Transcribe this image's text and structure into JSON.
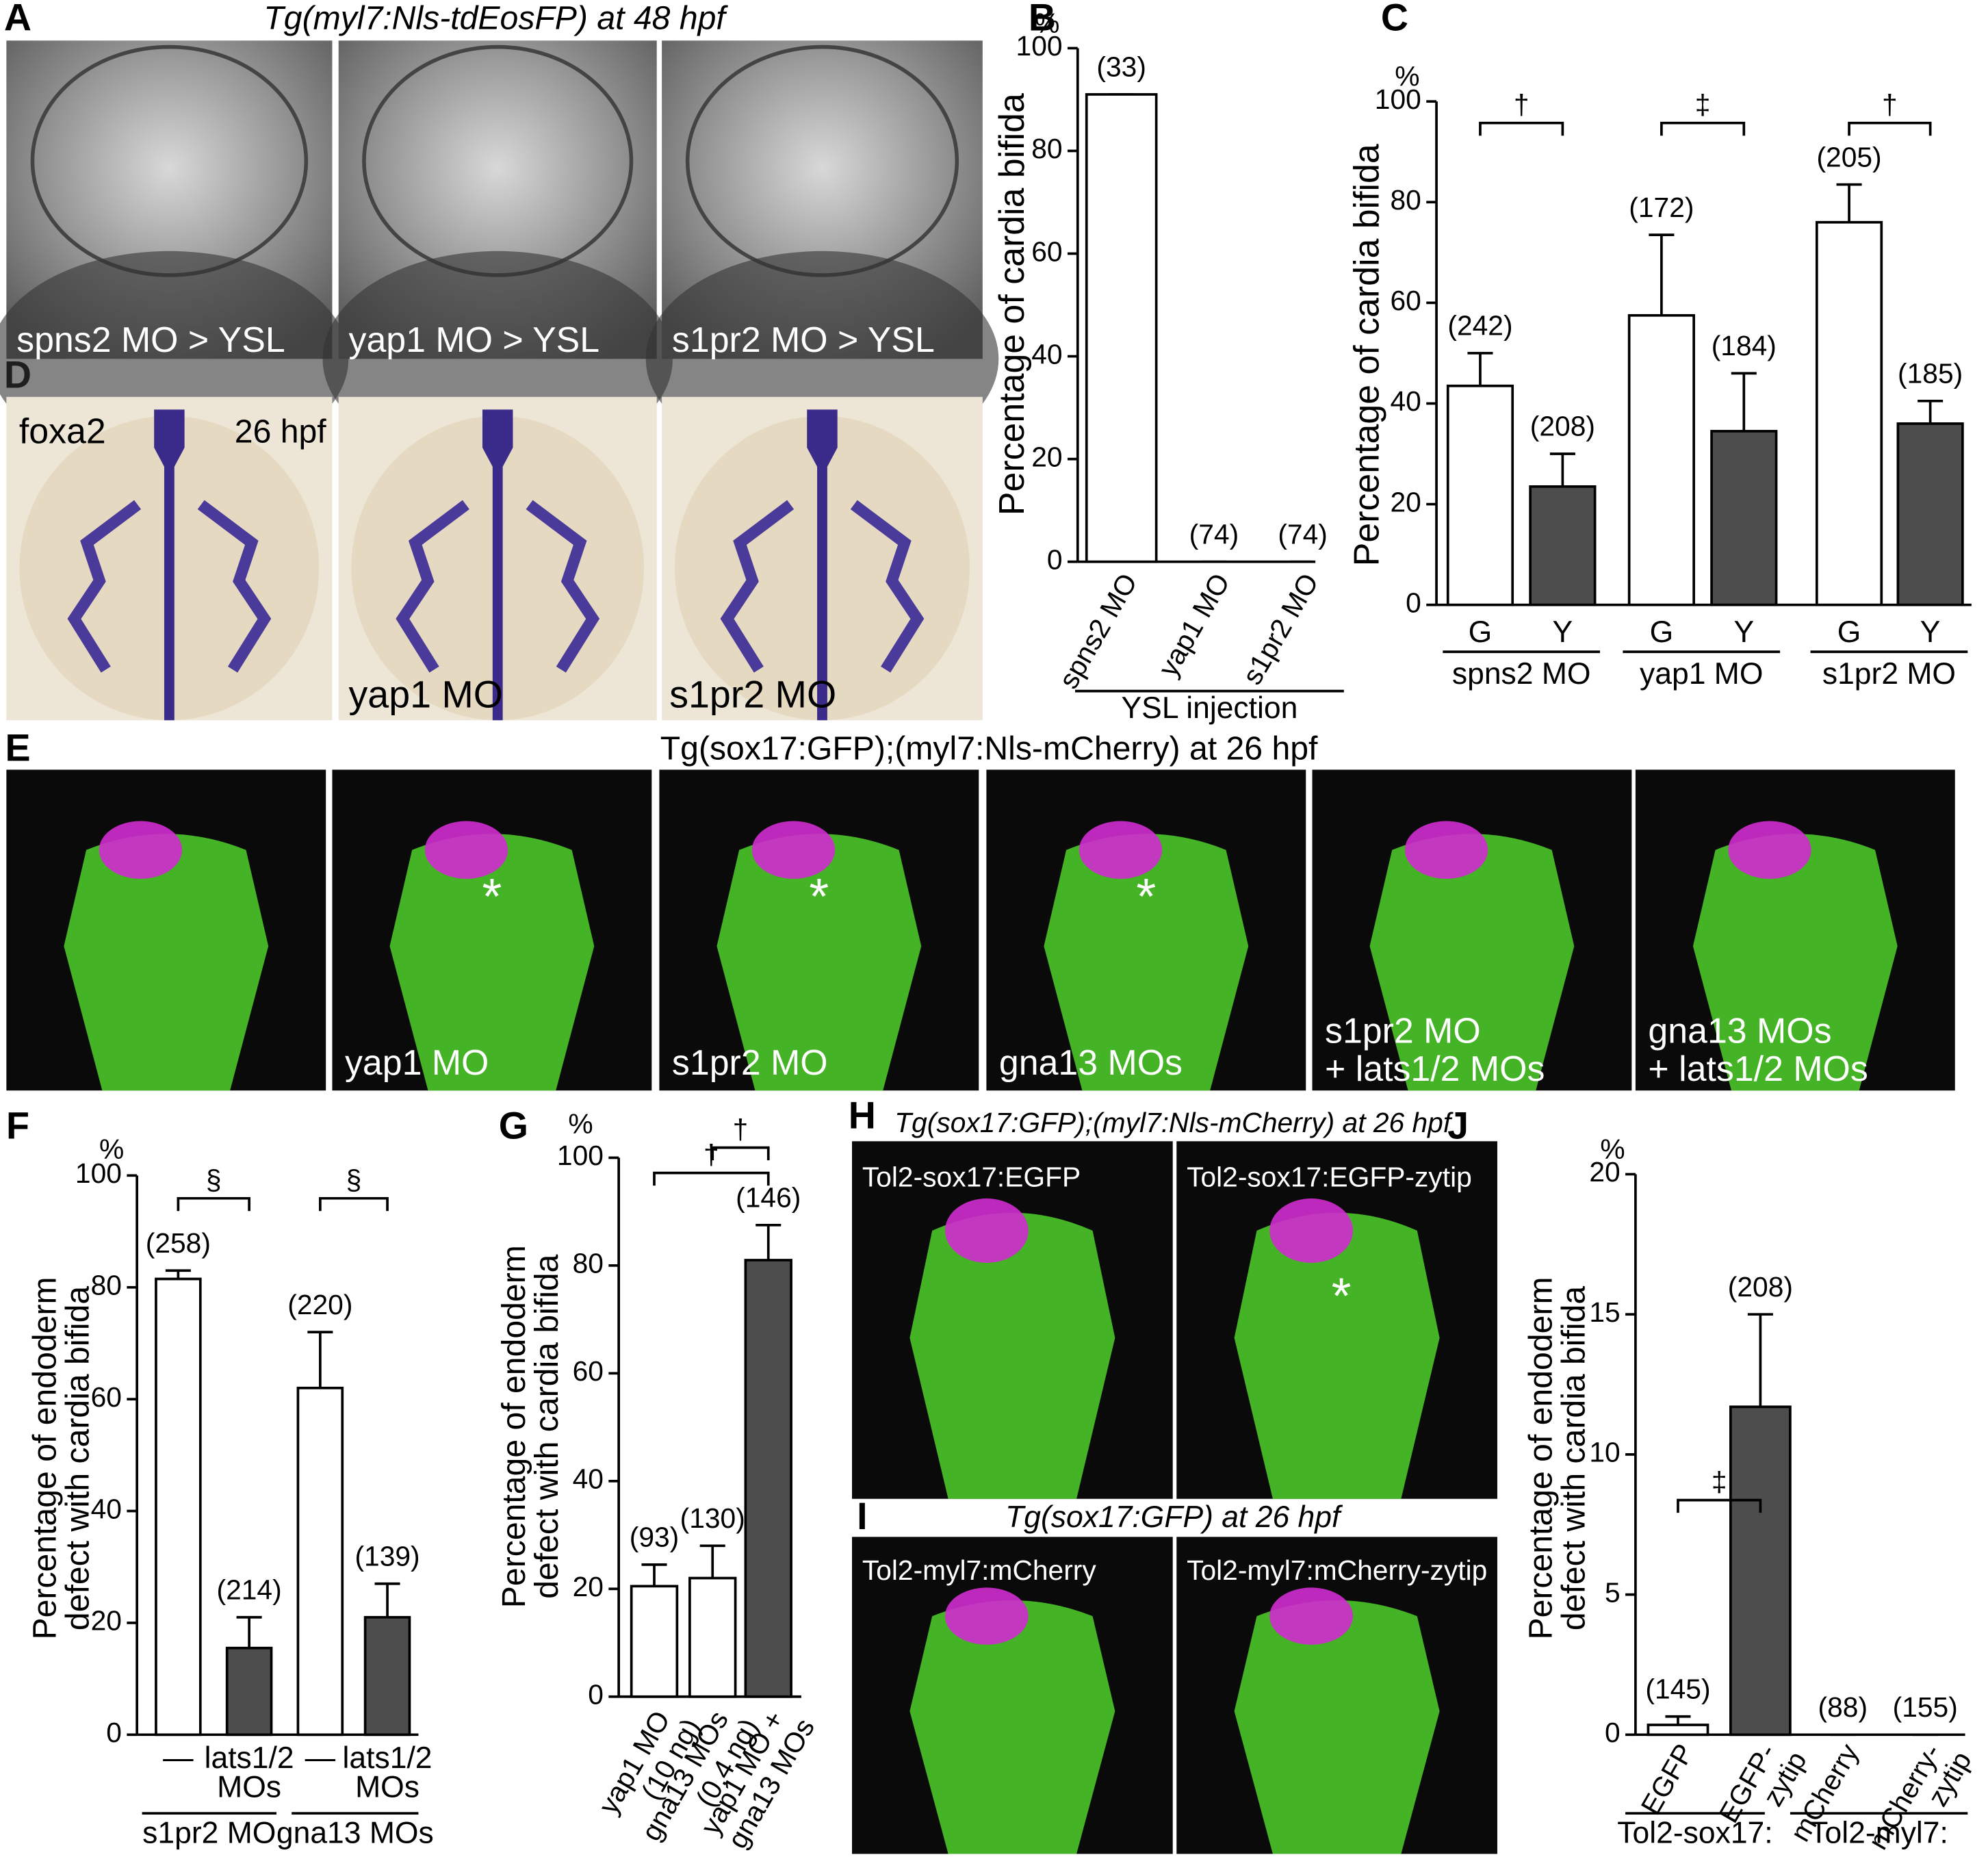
{
  "letters": [
    "A",
    "B",
    "C",
    "D",
    "E",
    "F",
    "G",
    "H",
    "I",
    "J"
  ],
  "asterisk": "*",
  "panel_A": {
    "title": "Tg(myl7:Nls-tdEosFP) at 48 hpf",
    "labels": [
      "spns2 MO > YSL",
      "yap1 MO > YSL",
      "s1pr2 MO > YSL"
    ]
  },
  "panel_D": {
    "labels": [
      "foxa2",
      "yap1 MO",
      "s1pr2 MO"
    ],
    "stage": "26 hpf"
  },
  "panel_E": {
    "title": "Tg(sox17:GFP);(myl7:Nls-mCherry) at 26 hpf",
    "labels": [
      [],
      [
        "yap1 MO"
      ],
      [
        "s1pr2 MO"
      ],
      [
        "gna13 MOs"
      ],
      [
        "s1pr2 MO",
        "+ lats1/2 MOs"
      ],
      [
        "gna13 MOs",
        "+ lats1/2 MOs"
      ]
    ]
  },
  "panel_H": {
    "title": "Tg(sox17:GFP);(myl7:Nls-mCherry) at 26 hpf",
    "labels": [
      "Tol2-sox17:EGFP",
      "Tol2-sox17:EGFP-zytip"
    ]
  },
  "panel_I": {
    "title": "Tg(sox17:GFP) at 26 hpf",
    "labels": [
      "Tol2-myl7:mCherry",
      "Tol2-myl7:mCherry-zytip"
    ]
  },
  "chart_data": [
    {
      "type": "bar",
      "ylabel": "Percentage of cardia bifida",
      "unit": "%",
      "categories": [
        "spns2 MO",
        "yap1 MO",
        "s1pr2 MO"
      ],
      "values": [
        91,
        0,
        0
      ],
      "errors": [
        0,
        0,
        0
      ],
      "colors": [
        "#ffffff",
        "#ffffff",
        "#ffffff"
      ],
      "n_labels": [
        "(33)",
        "(74)",
        "(74)"
      ],
      "groups": [
        "YSL injection"
      ],
      "ylim": [
        0,
        100
      ],
      "yticks": [
        0,
        20,
        40,
        60,
        80,
        100
      ]
    },
    {
      "type": "bar",
      "ylabel": "Percentage of cardia bifida",
      "unit": "%",
      "categories": [
        "G",
        "Y",
        "G",
        "Y",
        "G",
        "Y"
      ],
      "values": [
        43.5,
        23.5,
        57.5,
        34.5,
        76,
        36
      ],
      "errors": [
        6.5,
        6.5,
        16,
        11.5,
        7.5,
        4.5
      ],
      "colors": [
        "#ffffff",
        "#4d4d4d",
        "#ffffff",
        "#4d4d4d",
        "#ffffff",
        "#4d4d4d"
      ],
      "n_labels": [
        "(242)",
        "(208)",
        "(172)",
        "(184)",
        "(205)",
        "(185)"
      ],
      "groups": [
        "spns2 MO",
        "yap1 MO",
        "s1pr2 MO"
      ],
      "significance": [
        "†",
        "‡",
        "†"
      ],
      "ylim": [
        0,
        100
      ],
      "yticks": [
        0,
        20,
        40,
        60,
        80,
        100
      ]
    },
    {
      "type": "bar",
      "ylabel": [
        "Percentage of endoderm",
        "defect with cardia bifida"
      ],
      "unit": "%",
      "categories": [
        [
          "—"
        ],
        [
          "lats1/2",
          "MOs"
        ],
        [
          "—"
        ],
        [
          "lats1/2",
          "MOs"
        ]
      ],
      "values": [
        81.5,
        15.5,
        62,
        21
      ],
      "errors": [
        1.5,
        5.5,
        10,
        6
      ],
      "colors": [
        "#ffffff",
        "#4d4d4d",
        "#ffffff",
        "#4d4d4d"
      ],
      "n_labels": [
        "(258)",
        "(214)",
        "(220)",
        "(139)"
      ],
      "groups": [
        "s1pr2 MO",
        "gna13 MOs"
      ],
      "significance": [
        "§",
        "§"
      ],
      "ylim": [
        0,
        100
      ],
      "yticks": [
        0,
        20,
        40,
        60,
        80,
        100
      ]
    },
    {
      "type": "bar",
      "ylabel": [
        "Percentage of endoderm",
        "defect with cardia bifida"
      ],
      "unit": "%",
      "categories": [
        [
          "yap1 MO",
          "(10 ng)"
        ],
        [
          "gna13 MOs",
          "(0.4 ng)"
        ],
        [
          "yap1 MO +",
          "gna13 MOs"
        ]
      ],
      "values": [
        20.5,
        22,
        81
      ],
      "errors": [
        4,
        6,
        6.5
      ],
      "colors": [
        "#ffffff",
        "#ffffff",
        "#4d4d4d"
      ],
      "n_labels": [
        "(93)",
        "(130)",
        "(146)"
      ],
      "groups": [],
      "significance": [
        "†",
        "†"
      ],
      "ylim": [
        0,
        100
      ],
      "yticks": [
        0,
        20,
        40,
        60,
        80,
        100
      ]
    },
    {
      "type": "bar",
      "ylabel": [
        "Percentage of endoderm",
        "defect with cardia bifida"
      ],
      "unit": "%",
      "categories": [
        [
          "EGFP"
        ],
        [
          "EGFP-",
          "zytip"
        ],
        [
          "mCherry"
        ],
        [
          "mCherry-",
          "zytip"
        ]
      ],
      "values": [
        0.35,
        11.7,
        0,
        0
      ],
      "errors": [
        0.3,
        3.3,
        0,
        0
      ],
      "colors": [
        "#ffffff",
        "#4d4d4d",
        "#ffffff",
        "#4d4d4d"
      ],
      "n_labels": [
        "(145)",
        "(208)",
        "(88)",
        "(155)"
      ],
      "groups": [
        "Tol2-sox17:",
        "Tol2-myl7:"
      ],
      "significance": [
        "‡"
      ],
      "ylim": [
        0,
        20
      ],
      "yticks": [
        0,
        5,
        10,
        15,
        20
      ]
    }
  ]
}
